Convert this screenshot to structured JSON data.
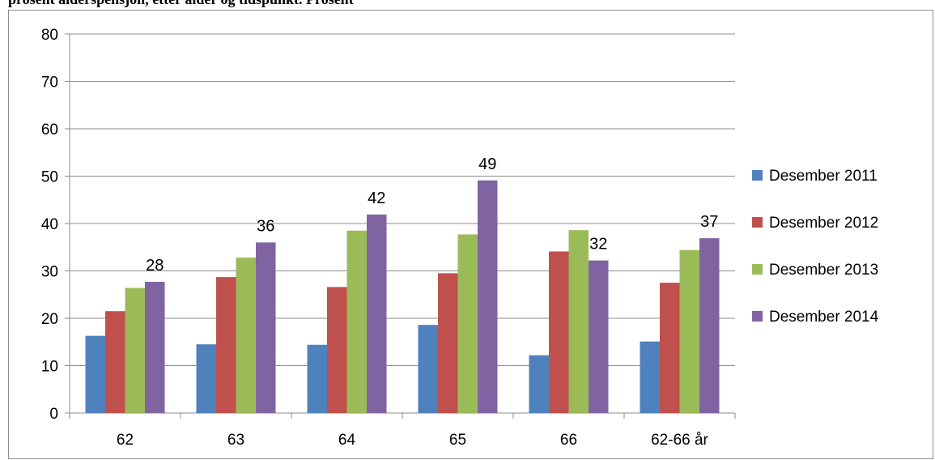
{
  "heading": "prosent alderspensjon, etter alder og tidspunkt. Prosent",
  "chart_data": {
    "type": "bar",
    "categories": [
      "62",
      "63",
      "64",
      "65",
      "66",
      "62-66 år"
    ],
    "series": [
      {
        "name": "Desember 2011",
        "color": "#4f81bd",
        "values": [
          16.3,
          14.5,
          14.4,
          18.6,
          12.2,
          15.1
        ]
      },
      {
        "name": "Desember 2012",
        "color": "#c0504d",
        "values": [
          21.5,
          28.7,
          26.6,
          29.5,
          34.1,
          27.5
        ]
      },
      {
        "name": "Desember 2013",
        "color": "#9bbb59",
        "values": [
          26.4,
          32.8,
          38.5,
          37.7,
          38.6,
          34.4
        ]
      },
      {
        "name": "Desember 2014",
        "color": "#8064a2",
        "values": [
          27.7,
          36.0,
          41.9,
          49.1,
          32.2,
          36.9
        ]
      }
    ],
    "data_labels": {
      "series_index": 3,
      "labels": [
        "28",
        "36",
        "42",
        "49",
        "32",
        "37"
      ]
    },
    "ylim": [
      0,
      80
    ],
    "yticks": [
      "0",
      "10",
      "20",
      "30",
      "40",
      "50",
      "60",
      "70",
      "80"
    ],
    "grid": true,
    "legend": "right",
    "title": "",
    "xlabel": "",
    "ylabel": ""
  }
}
